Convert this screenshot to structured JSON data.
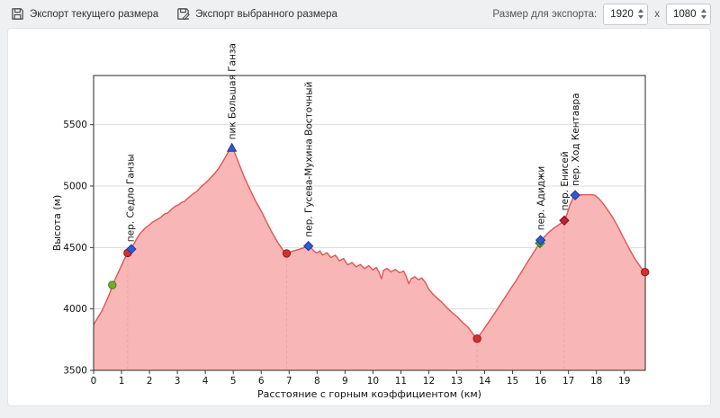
{
  "toolbar": {
    "export_current_label": "Экспорт текущего размера",
    "export_selected_label": "Экспорт выбранного размера",
    "export_size_label": "Размер для экспорта:",
    "width_value": "1920",
    "separator": "x",
    "height_value": "1080"
  },
  "chart_data": {
    "type": "area",
    "title": "",
    "xlabel": "Расстояние с горным коэффициентом (км)",
    "ylabel": "Высота (м)",
    "xlim": [
      0,
      19.75
    ],
    "ylim": [
      3500,
      5900
    ],
    "xticks": [
      0,
      1,
      2,
      3,
      4,
      5,
      6,
      7,
      8,
      9,
      10,
      11,
      12,
      13,
      14,
      15,
      16,
      17,
      18,
      19
    ],
    "yticks": [
      3500,
      4000,
      4500,
      5000,
      5500
    ],
    "grid": "horizontal-only",
    "legend": "none",
    "series": [
      {
        "name": "elevation-profile",
        "points": [
          [
            0,
            3870
          ],
          [
            0.15,
            3930
          ],
          [
            0.3,
            3985
          ],
          [
            0.45,
            4060
          ],
          [
            0.6,
            4140
          ],
          [
            0.67,
            4195
          ],
          [
            0.8,
            4255
          ],
          [
            0.95,
            4330
          ],
          [
            1.1,
            4405
          ],
          [
            1.22,
            4455
          ],
          [
            1.35,
            4487
          ],
          [
            1.5,
            4555
          ],
          [
            1.65,
            4610
          ],
          [
            1.85,
            4660
          ],
          [
            2.0,
            4685
          ],
          [
            2.1,
            4705
          ],
          [
            2.25,
            4725
          ],
          [
            2.4,
            4745
          ],
          [
            2.55,
            4775
          ],
          [
            2.65,
            4780
          ],
          [
            2.8,
            4815
          ],
          [
            2.95,
            4840
          ],
          [
            3.05,
            4848
          ],
          [
            3.15,
            4868
          ],
          [
            3.25,
            4874
          ],
          [
            3.35,
            4898
          ],
          [
            3.45,
            4915
          ],
          [
            3.55,
            4935
          ],
          [
            3.7,
            4958
          ],
          [
            3.85,
            4995
          ],
          [
            4.0,
            5025
          ],
          [
            4.15,
            5058
          ],
          [
            4.3,
            5095
          ],
          [
            4.45,
            5135
          ],
          [
            4.6,
            5190
          ],
          [
            4.75,
            5248
          ],
          [
            4.87,
            5298
          ],
          [
            4.95,
            5310
          ],
          [
            5.05,
            5272
          ],
          [
            5.2,
            5185
          ],
          [
            5.4,
            5070
          ],
          [
            5.6,
            4972
          ],
          [
            5.8,
            4878
          ],
          [
            6.0,
            4798
          ],
          [
            6.2,
            4705
          ],
          [
            6.4,
            4618
          ],
          [
            6.6,
            4538
          ],
          [
            6.8,
            4472
          ],
          [
            6.91,
            4452
          ],
          [
            7.1,
            4468
          ],
          [
            7.3,
            4482
          ],
          [
            7.5,
            4496
          ],
          [
            7.69,
            4512
          ],
          [
            7.8,
            4492
          ],
          [
            7.9,
            4468
          ],
          [
            8.0,
            4455
          ],
          [
            8.1,
            4472
          ],
          [
            8.2,
            4438
          ],
          [
            8.35,
            4458
          ],
          [
            8.5,
            4418
          ],
          [
            8.65,
            4438
          ],
          [
            8.8,
            4392
          ],
          [
            8.95,
            4410
          ],
          [
            9.1,
            4358
          ],
          [
            9.25,
            4378
          ],
          [
            9.4,
            4342
          ],
          [
            9.55,
            4362
          ],
          [
            9.7,
            4328
          ],
          [
            9.85,
            4352
          ],
          [
            10.0,
            4318
          ],
          [
            10.12,
            4338
          ],
          [
            10.22,
            4300
          ],
          [
            10.3,
            4245
          ],
          [
            10.38,
            4315
          ],
          [
            10.5,
            4330
          ],
          [
            10.65,
            4302
          ],
          [
            10.8,
            4322
          ],
          [
            10.95,
            4295
          ],
          [
            11.1,
            4308
          ],
          [
            11.2,
            4260
          ],
          [
            11.28,
            4205
          ],
          [
            11.38,
            4248
          ],
          [
            11.5,
            4262
          ],
          [
            11.62,
            4238
          ],
          [
            11.75,
            4252
          ],
          [
            11.88,
            4215
          ],
          [
            12.0,
            4160
          ],
          [
            12.15,
            4120
          ],
          [
            12.3,
            4088
          ],
          [
            12.45,
            4058
          ],
          [
            12.6,
            4022
          ],
          [
            12.75,
            3988
          ],
          [
            12.9,
            3958
          ],
          [
            13.05,
            3928
          ],
          [
            13.2,
            3892
          ],
          [
            13.4,
            3852
          ],
          [
            13.6,
            3792
          ],
          [
            13.73,
            3758
          ],
          [
            13.9,
            3812
          ],
          [
            14.1,
            3878
          ],
          [
            14.3,
            3945
          ],
          [
            14.5,
            4015
          ],
          [
            14.7,
            4085
          ],
          [
            14.9,
            4155
          ],
          [
            15.1,
            4222
          ],
          [
            15.3,
            4295
          ],
          [
            15.5,
            4370
          ],
          [
            15.7,
            4440
          ],
          [
            15.85,
            4495
          ],
          [
            16.0,
            4548
          ],
          [
            16.15,
            4590
          ],
          [
            16.3,
            4625
          ],
          [
            16.5,
            4662
          ],
          [
            16.7,
            4692
          ],
          [
            16.85,
            4718
          ],
          [
            16.95,
            4775
          ],
          [
            17.05,
            4845
          ],
          [
            17.15,
            4898
          ],
          [
            17.24,
            4926
          ],
          [
            17.4,
            4928
          ],
          [
            17.6,
            4930
          ],
          [
            17.8,
            4930
          ],
          [
            17.95,
            4926
          ],
          [
            18.1,
            4895
          ],
          [
            18.25,
            4855
          ],
          [
            18.45,
            4790
          ],
          [
            18.6,
            4738
          ],
          [
            18.75,
            4678
          ],
          [
            18.9,
            4610
          ],
          [
            19.05,
            4545
          ],
          [
            19.2,
            4480
          ],
          [
            19.35,
            4418
          ],
          [
            19.5,
            4368
          ],
          [
            19.62,
            4328
          ],
          [
            19.74,
            4300
          ]
        ]
      }
    ],
    "markers": [
      {
        "shape": "circle",
        "x": 0.67,
        "y": 4195,
        "fill": "#6fae2d",
        "stroke": "#4e7d1e",
        "name": "waypoint-green-circle"
      },
      {
        "shape": "circle",
        "x": 1.22,
        "y": 4455,
        "fill": "#d62f2f",
        "stroke": "#901d1d",
        "name": "pass-point"
      },
      {
        "shape": "diamond",
        "x": 1.35,
        "y": 4487,
        "fill": "#2e5cd8",
        "stroke": "#1c3a8f",
        "name": "pass-marker"
      },
      {
        "shape": "triangle",
        "x": 4.95,
        "y": 5310,
        "fill": "#2e5cd8",
        "stroke": "#1c3a8f",
        "name": "peak-marker"
      },
      {
        "shape": "circle",
        "x": 6.91,
        "y": 4452,
        "fill": "#d62f2f",
        "stroke": "#901d1d",
        "name": "pass-point"
      },
      {
        "shape": "diamond",
        "x": 7.69,
        "y": 4512,
        "fill": "#2e5cd8",
        "stroke": "#1c3a8f",
        "name": "pass-marker"
      },
      {
        "shape": "circle",
        "x": 13.73,
        "y": 3758,
        "fill": "#d62f2f",
        "stroke": "#901d1d",
        "name": "valley-point"
      },
      {
        "shape": "diamond",
        "x": 15.98,
        "y": 4535,
        "fill": "#3aa63a",
        "stroke": "#267526",
        "name": "pass-marker-green"
      },
      {
        "shape": "diamond",
        "x": 16.0,
        "y": 4560,
        "fill": "#2e5cd8",
        "stroke": "#1c3a8f",
        "name": "pass-marker"
      },
      {
        "shape": "diamond",
        "x": 16.85,
        "y": 4720,
        "fill": "#c2203a",
        "stroke": "#7d1425",
        "name": "pass-marker-red"
      },
      {
        "shape": "diamond",
        "x": 17.24,
        "y": 4926,
        "fill": "#2e5cd8",
        "stroke": "#1c3a8f",
        "name": "pass-marker"
      },
      {
        "shape": "circle",
        "x": 19.74,
        "y": 4300,
        "fill": "#d62f2f",
        "stroke": "#901d1d",
        "name": "route-end-point"
      }
    ],
    "dashed_lines": [
      {
        "x": 1.22,
        "top": 4455
      },
      {
        "x": 6.91,
        "top": 4452
      },
      {
        "x": 13.73,
        "top": 3758
      },
      {
        "x": 16.85,
        "top": 4720
      }
    ],
    "annotations": [
      {
        "x": 1.3,
        "y": 4545,
        "text": "пер. Седло Ганзы"
      },
      {
        "x": 4.95,
        "y": 5378,
        "text": "пик Большая Ганза"
      },
      {
        "x": 7.69,
        "y": 4585,
        "text": "пер. Гусева-Мухина Восточный"
      },
      {
        "x": 16.0,
        "y": 4640,
        "text": "пер. Адиджи"
      },
      {
        "x": 16.85,
        "y": 4800,
        "text": "пер. Енисей"
      },
      {
        "x": 17.24,
        "y": 5000,
        "text": "пер. Ход Кентавра"
      }
    ],
    "colors": {
      "line": "#e05555",
      "fill": "#f8b6b6",
      "dashed": "#efa3a3",
      "grid": "#dddddd",
      "spine": "#3a3a3a",
      "tick_text": "#111111",
      "annotation_text": "#111111"
    }
  }
}
